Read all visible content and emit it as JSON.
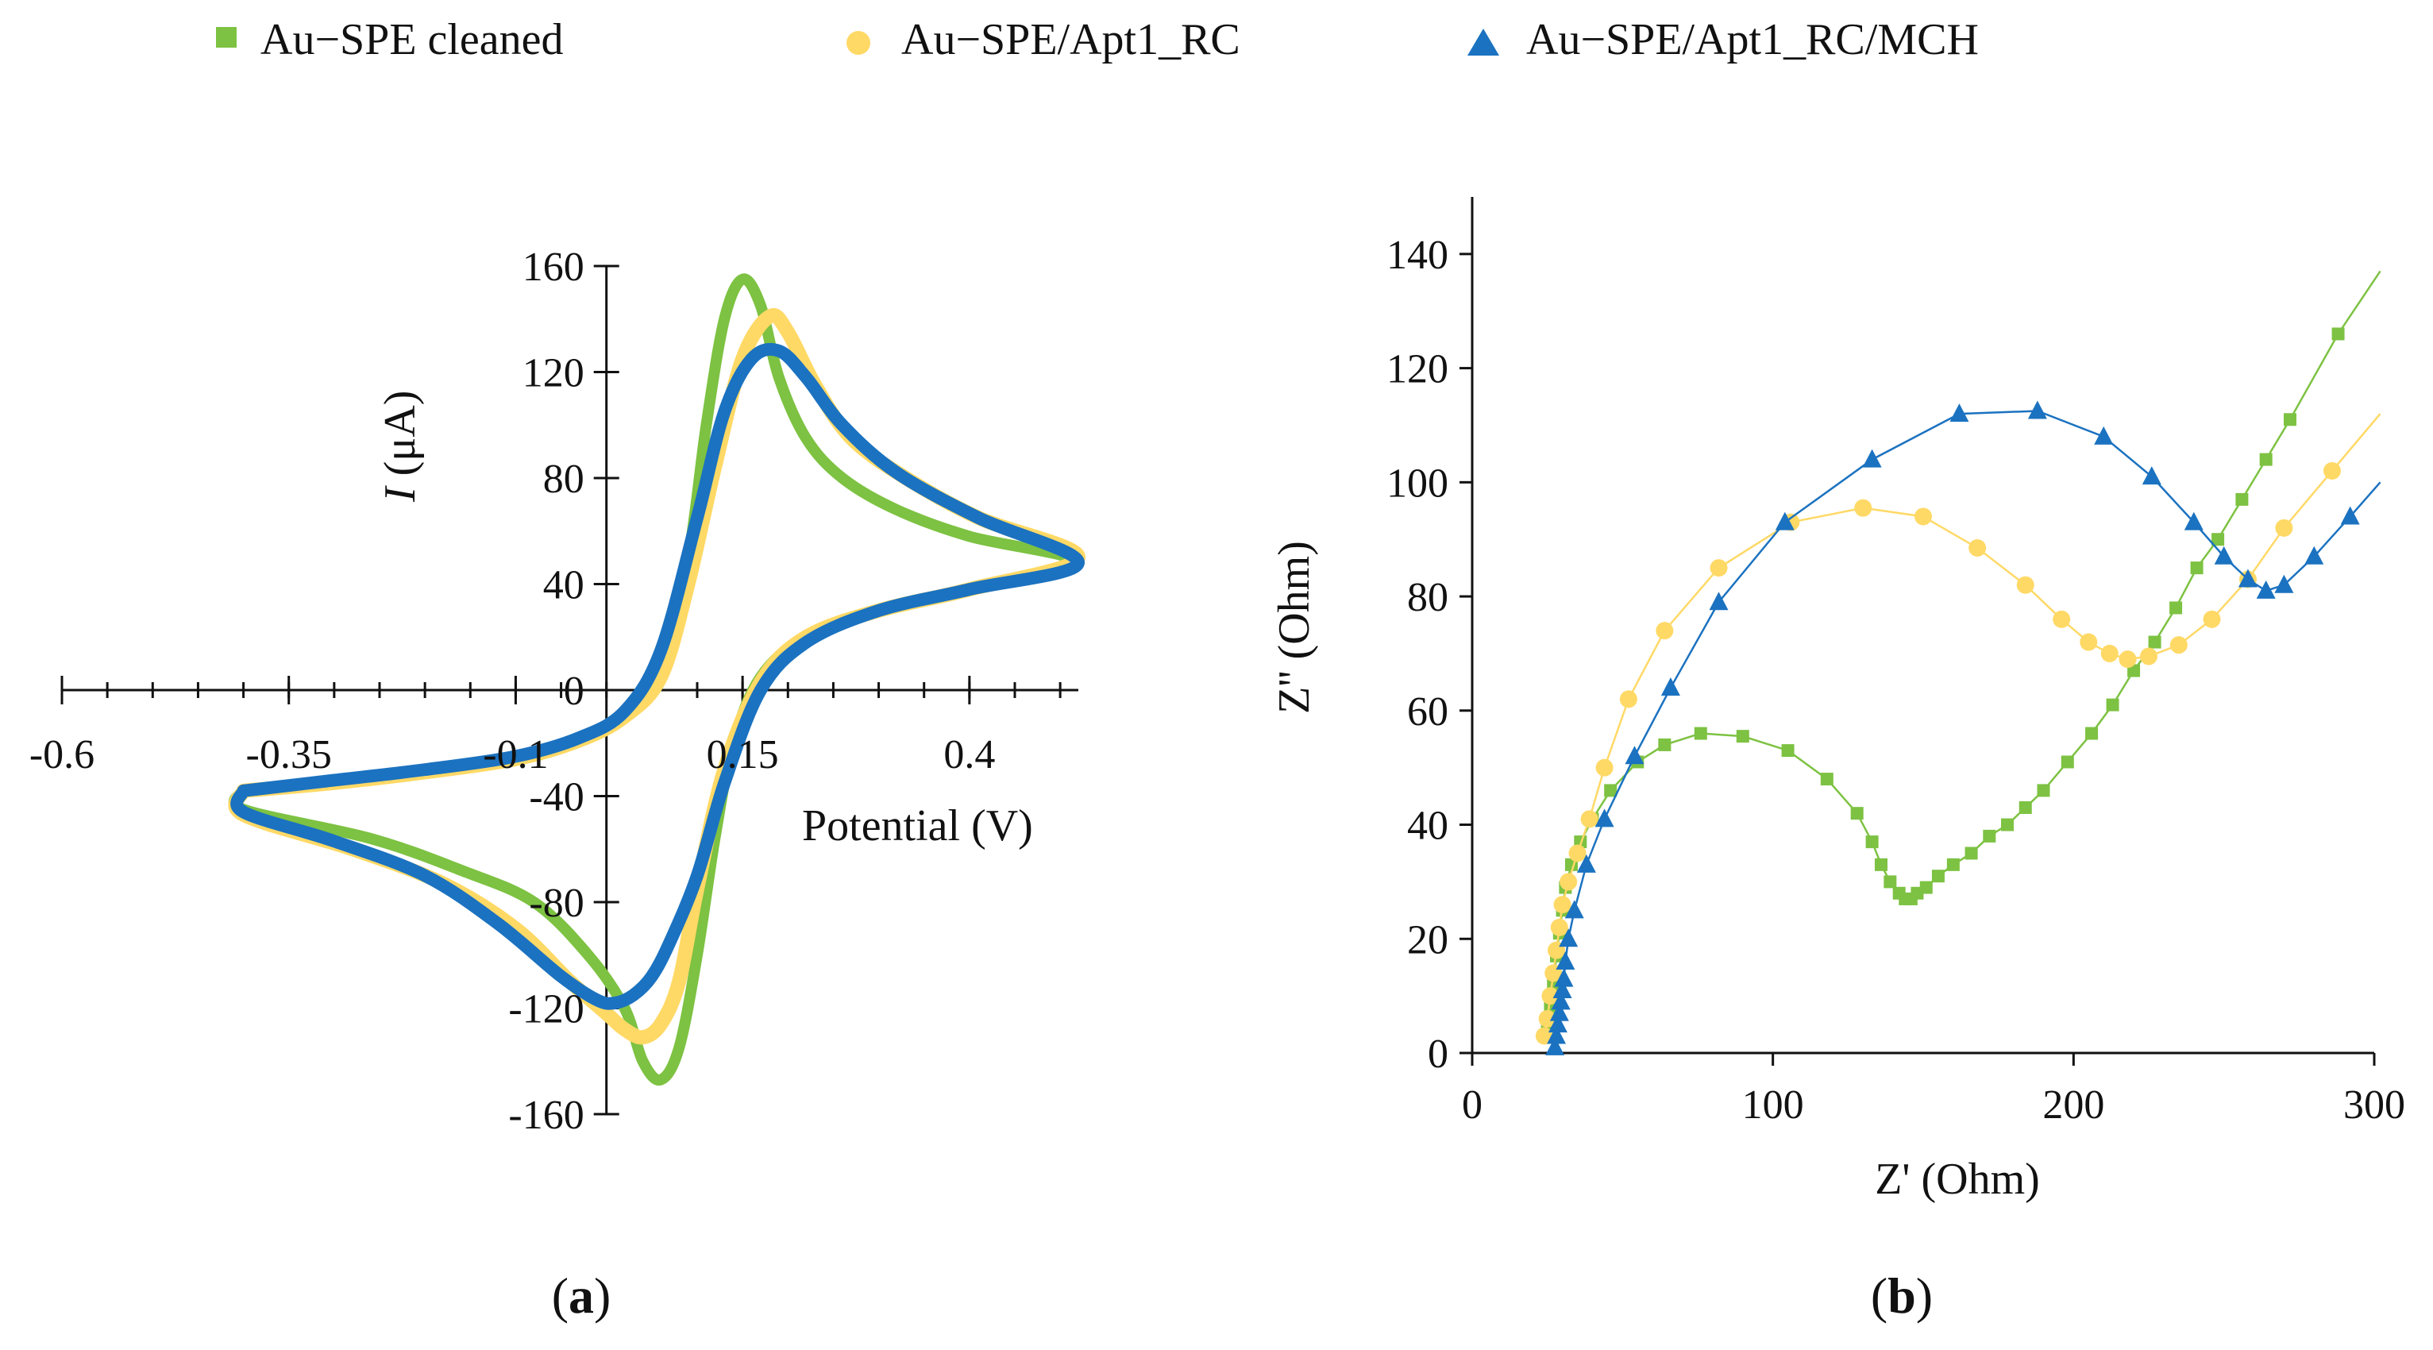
{
  "colors": {
    "cleaned": "#7DC242",
    "apt": "#FFD966",
    "mch": "#1B72C0"
  },
  "legend": [
    {
      "key": "cleaned",
      "marker": "square",
      "label": "Au−SPE cleaned"
    },
    {
      "key": "apt",
      "marker": "circle",
      "label": "Au−SPE/Apt1_RC"
    },
    {
      "key": "mch",
      "marker": "triangle",
      "label": "Au−SPE/Apt1_RC/MCH"
    }
  ],
  "panels": {
    "a": {
      "label_open": "(",
      "label_letter": "a",
      "label_close": ")"
    },
    "b": {
      "label_open": "(",
      "label_letter": "b",
      "label_close": ")"
    }
  },
  "chart_data": [
    {
      "type": "line",
      "panel": "a",
      "xlabel": "Potential  (V)",
      "ylabel_italic": "I",
      "ylabel_rest": " (μA)",
      "xlim": [
        -0.6,
        0.52
      ],
      "ylim": [
        -160,
        160
      ],
      "xticks": [
        -0.6,
        -0.35,
        -0.1,
        0.15,
        0.4
      ],
      "xtick_labels": [
        "-0.6",
        "-0.35",
        "-0.1",
        "0.15",
        "0.4"
      ],
      "yticks": [
        -160,
        -120,
        -80,
        -40,
        0,
        40,
        80,
        120,
        160
      ],
      "ytick_labels": [
        "-160",
        "-120",
        "-80",
        "-40",
        "0",
        "40",
        "80",
        "120",
        "160"
      ],
      "series": [
        {
          "key": "cleaned",
          "name": "Au−SPE cleaned",
          "x": [
            -0.4,
            -0.3,
            -0.2,
            -0.1,
            -0.03,
            0.02,
            0.06,
            0.09,
            0.11,
            0.13,
            0.15,
            0.17,
            0.19,
            0.22,
            0.26,
            0.32,
            0.4,
            0.52,
            0.4,
            0.3,
            0.22,
            0.17,
            0.14,
            0.12,
            0.1,
            0.08,
            0.06,
            0.04,
            0.02,
            -0.02,
            -0.08,
            -0.16,
            -0.26,
            -0.4
          ],
          "y": [
            -38,
            -34,
            -30,
            -25,
            -18,
            -8,
            10,
            50,
            100,
            140,
            155,
            145,
            118,
            95,
            80,
            68,
            58,
            48,
            38,
            30,
            20,
            5,
            -20,
            -55,
            -100,
            -135,
            -147,
            -140,
            -120,
            -100,
            -80,
            -68,
            -56,
            -45
          ]
        },
        {
          "key": "apt",
          "name": "Au−SPE/Apt1_RC",
          "x": [
            -0.4,
            -0.3,
            -0.2,
            -0.1,
            -0.03,
            0.02,
            0.06,
            0.09,
            0.12,
            0.15,
            0.18,
            0.2,
            0.23,
            0.27,
            0.33,
            0.41,
            0.52,
            0.4,
            0.3,
            0.22,
            0.17,
            0.13,
            0.1,
            0.08,
            0.06,
            0.04,
            0.02,
            0.0,
            -0.04,
            -0.1,
            -0.18,
            -0.28,
            -0.4
          ],
          "y": [
            -38,
            -35,
            -31,
            -26,
            -19,
            -10,
            5,
            40,
            85,
            125,
            141,
            135,
            115,
            95,
            80,
            65,
            50,
            38,
            30,
            20,
            3,
            -30,
            -75,
            -110,
            -126,
            -131,
            -128,
            -122,
            -110,
            -90,
            -73,
            -60,
            -47
          ]
        },
        {
          "key": "mch",
          "name": "Au−SPE/Apt1_RC/MCH",
          "x": [
            -0.4,
            -0.3,
            -0.2,
            -0.1,
            -0.03,
            0.02,
            0.06,
            0.1,
            0.13,
            0.16,
            0.19,
            0.22,
            0.26,
            0.32,
            0.41,
            0.52,
            0.4,
            0.3,
            0.22,
            0.17,
            0.13,
            0.1,
            0.07,
            0.05,
            0.03,
            0.01,
            -0.01,
            -0.05,
            -0.12,
            -0.2,
            -0.3,
            -0.4
          ],
          "y": [
            -38,
            -34,
            -30,
            -25,
            -18,
            -8,
            15,
            65,
            105,
            125,
            128,
            118,
            100,
            82,
            65,
            48,
            38,
            30,
            18,
            0,
            -35,
            -70,
            -95,
            -108,
            -115,
            -118,
            -117,
            -108,
            -88,
            -70,
            -57,
            -46
          ]
        }
      ]
    },
    {
      "type": "scatter",
      "panel": "b",
      "xlabel": "Z' (Ohm)",
      "ylabel": "Z'' (Ohm)",
      "xlim": [
        0,
        300
      ],
      "ylim": [
        0,
        150
      ],
      "xticks": [
        0,
        100,
        200,
        300
      ],
      "xtick_labels": [
        "0",
        "100",
        "200",
        "300"
      ],
      "yticks": [
        0,
        20,
        40,
        60,
        80,
        100,
        120,
        140
      ],
      "ytick_labels": [
        "0",
        "20",
        "40",
        "60",
        "80",
        "100",
        "120",
        "140"
      ],
      "series": [
        {
          "key": "cleaned",
          "name": "Au−SPE cleaned",
          "x": [
            25,
            26,
            27,
            28,
            29,
            30,
            31,
            33,
            36,
            40,
            46,
            55,
            64,
            76,
            90,
            105,
            118,
            128,
            133,
            136,
            139,
            142,
            144,
            146,
            148,
            151,
            155,
            160,
            166,
            172,
            178,
            184,
            190,
            198,
            206,
            213,
            220,
            227,
            234,
            241,
            248,
            256,
            264,
            272,
            288
          ],
          "y": [
            4,
            8,
            12,
            17,
            21,
            25,
            29,
            33,
            37,
            41,
            46,
            51,
            54,
            56,
            55.5,
            53,
            48,
            42,
            37,
            33,
            30,
            28,
            27,
            27,
            28,
            29,
            31,
            33,
            35,
            38,
            40,
            43,
            46,
            51,
            56,
            61,
            67,
            72,
            78,
            85,
            90,
            97,
            104,
            111,
            126
          ]
        },
        {
          "key": "apt",
          "name": "Au−SPE/Apt1_RC",
          "x": [
            24,
            25,
            26,
            27,
            28,
            29,
            30,
            32,
            35,
            39,
            44,
            52,
            64,
            82,
            106,
            130,
            150,
            168,
            184,
            196,
            205,
            212,
            218,
            225,
            235,
            246,
            258,
            270,
            286
          ],
          "y": [
            3,
            6,
            10,
            14,
            18,
            22,
            26,
            30,
            35,
            41,
            50,
            62,
            74,
            85,
            93,
            95.5,
            94,
            88.5,
            82,
            76,
            72,
            70,
            69,
            69.5,
            71.5,
            76,
            83,
            92,
            102
          ]
        },
        {
          "key": "mch",
          "name": "Au−SPE/Apt1_RC/MCH",
          "x": [
            27.5,
            28,
            28.5,
            29,
            29.5,
            30,
            30.5,
            31,
            32,
            34,
            38,
            44,
            54,
            66,
            82,
            104,
            133,
            162,
            188,
            210,
            226,
            240,
            250,
            258,
            264,
            270,
            280,
            292
          ],
          "y": [
            1,
            3,
            5,
            7,
            9,
            11,
            13,
            16,
            20,
            25,
            33,
            41,
            52,
            64,
            79,
            93,
            104,
            112,
            112.5,
            108,
            101,
            93,
            87,
            83,
            81,
            82,
            87,
            94
          ]
        }
      ]
    }
  ]
}
